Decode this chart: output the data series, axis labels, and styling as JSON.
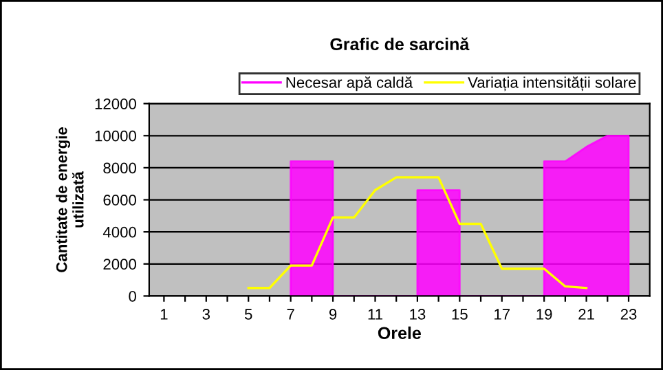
{
  "chart_data": {
    "type": "area",
    "title": "Grafic de sarcină",
    "xlabel": "Orele",
    "ylabel": "Cantitate de energie\nutilizată",
    "series": [
      {
        "name": "Necesar apă caldă",
        "color": "#ff00ff",
        "x": [
          7,
          7,
          8,
          9,
          9,
          13,
          13,
          14,
          15,
          15,
          19,
          19,
          20,
          21,
          22,
          23,
          23
        ],
        "values": [
          0,
          8400,
          8400,
          8400,
          0,
          0,
          6600,
          6600,
          6600,
          0,
          0,
          8400,
          8400,
          9300,
          10000,
          10000,
          0
        ]
      },
      {
        "name": "Variația intensității solare",
        "type": "line",
        "color": "#ffff00",
        "x": [
          5,
          6,
          7,
          8,
          9,
          10,
          11,
          12,
          13,
          14,
          15,
          16,
          17,
          18,
          19,
          20,
          21
        ],
        "values": [
          500,
          500,
          1900,
          1900,
          4900,
          4900,
          6600,
          7400,
          7400,
          7400,
          4500,
          4500,
          1700,
          1700,
          1700,
          600,
          500
        ]
      }
    ],
    "xlim": [
      0.3,
      24
    ],
    "xticks": [
      1,
      {
        "value": 2,
        "label": null
      },
      3,
      {
        "value": 4,
        "label": null
      },
      5,
      {
        "value": 6,
        "label": null
      },
      7,
      {
        "value": 8,
        "label": null
      },
      9,
      {
        "value": 10,
        "label": null
      },
      11,
      {
        "value": 12,
        "label": null
      },
      13,
      {
        "value": 14,
        "label": null
      },
      15,
      {
        "value": 16,
        "label": null
      },
      17,
      {
        "value": 18,
        "label": null
      },
      19,
      {
        "value": 20,
        "label": null
      },
      21,
      {
        "value": 22,
        "label": null
      },
      23
    ],
    "ylim": [
      0,
      12000
    ],
    "yticks": [
      0,
      2000,
      4000,
      6000,
      8000,
      10000,
      12000
    ],
    "grid": "y",
    "legend": "top"
  }
}
